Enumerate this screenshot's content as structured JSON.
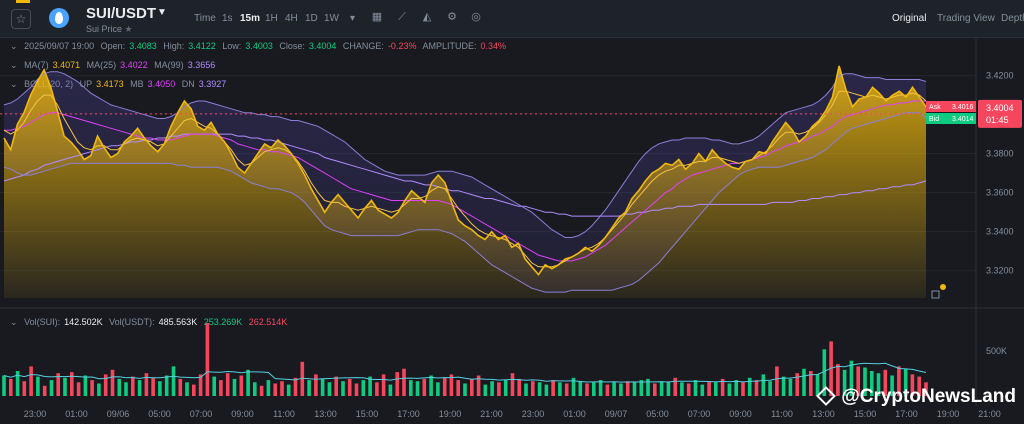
{
  "header": {
    "pair": "SUI/USDT",
    "subtitle": "Sui Price",
    "timeframes": [
      "Time",
      "1s",
      "15m",
      "1H",
      "4H",
      "1D",
      "1W"
    ],
    "active_timeframe": "15m",
    "views": [
      "Original",
      "Trading View",
      "Depth"
    ],
    "active_view": "Original",
    "icons": [
      "star-icon",
      "coin-icon",
      "chevron-down-icon",
      "calendar-icon",
      "line-chart-icon",
      "area-chart-icon",
      "settings-icon",
      "indicator-icon"
    ]
  },
  "ohlc": {
    "date": "2025/09/07 19:00",
    "open_label": "Open:",
    "open": "3.4083",
    "high_label": "High:",
    "high": "3.4122",
    "low_label": "Low:",
    "low": "3.4003",
    "close_label": "Close:",
    "close": "3.4004",
    "change_label": "CHANGE:",
    "change": "-0.23%",
    "amp_label": "AMPLITUDE:",
    "amp": "0.34%"
  },
  "ma": {
    "ma7_label": "MA(7)",
    "ma7": "3.4071",
    "ma25_label": "MA(25)",
    "ma25": "3.4022",
    "ma99_label": "MA(99)",
    "ma99": "3.3656"
  },
  "boll": {
    "label": "BOLL(20, 2)",
    "up_label": "UP",
    "up": "3.4173",
    "mb_label": "MB",
    "mb": "3.4050",
    "dn_label": "DN",
    "dn": "3.3927"
  },
  "orderbook": {
    "ask_label": "Ask",
    "ask": "3.4016",
    "bid_label": "Bid",
    "bid": "3.4014",
    "last": "3.4004",
    "countdown": "01:45"
  },
  "volume": {
    "sui_label": "Vol(SUI):",
    "sui": "142.502K",
    "usdt_label": "Vol(USDT):",
    "usdt": "485.563K",
    "buy": "253.269K",
    "sell": "262.514K"
  },
  "watermark": "@CryptoNewsLand",
  "colors": {
    "up": "#0ecb81",
    "down": "#f6465d",
    "price_line": "#f0b90b",
    "ma7": "#f0b90b",
    "ma25": "#e040fb",
    "ma99": "#b18cff",
    "boll": "#8b7fd6"
  },
  "chart_data": {
    "type": "area",
    "y_ticks": [
      "3.4200",
      "3.4004",
      "3.3800",
      "3.3600",
      "3.3400",
      "3.3200"
    ],
    "y_range": [
      3.306,
      3.428
    ],
    "x_ticks": [
      "23:00",
      "01:00",
      "09/06",
      "05:00",
      "07:00",
      "09:00",
      "11:00",
      "13:00",
      "15:00",
      "17:00",
      "19:00",
      "21:00",
      "23:00",
      "01:00",
      "09/07",
      "05:00",
      "07:00",
      "09:00",
      "11:00",
      "13:00",
      "15:00",
      "17:00",
      "19:00",
      "21:00"
    ],
    "vol_tick": "500K",
    "vol_max": 650,
    "price": [
      3.388,
      3.382,
      3.395,
      3.401,
      3.41,
      3.417,
      3.423,
      3.414,
      3.402,
      3.389,
      3.386,
      3.382,
      3.377,
      3.379,
      3.389,
      3.383,
      3.378,
      3.38,
      3.386,
      3.389,
      3.393,
      3.388,
      3.384,
      3.381,
      3.385,
      3.394,
      3.401,
      3.407,
      3.403,
      3.394,
      3.392,
      3.396,
      3.39,
      3.386,
      3.38,
      3.373,
      3.37,
      3.375,
      3.38,
      3.385,
      3.383,
      3.387,
      3.384,
      3.38,
      3.375,
      3.369,
      3.362,
      3.356,
      3.35,
      3.355,
      3.359,
      3.355,
      3.351,
      3.347,
      3.352,
      3.356,
      3.351,
      3.349,
      3.347,
      3.35,
      3.356,
      3.361,
      3.358,
      3.355,
      3.365,
      3.369,
      3.365,
      3.355,
      3.346,
      3.343,
      3.341,
      3.338,
      3.336,
      3.34,
      3.336,
      3.338,
      3.332,
      3.334,
      3.326,
      3.322,
      3.318,
      3.323,
      3.321,
      3.323,
      3.326,
      3.327,
      3.329,
      3.332,
      3.33,
      3.333,
      3.337,
      3.342,
      3.347,
      3.35,
      3.357,
      3.361,
      3.366,
      3.37,
      3.372,
      3.375,
      3.374,
      3.377,
      3.372,
      3.375,
      3.38,
      3.376,
      3.382,
      3.378,
      3.375,
      3.373,
      3.372,
      3.376,
      3.377,
      3.381,
      3.38,
      3.386,
      3.391,
      3.396,
      3.392,
      3.386,
      3.389,
      3.394,
      3.397,
      3.402,
      3.409,
      3.425,
      3.413,
      3.404,
      3.408,
      3.409,
      3.414,
      3.411,
      3.407,
      3.41,
      3.412,
      3.409,
      3.414,
      3.409,
      3.404
    ],
    "ma7": [
      3.392,
      3.39,
      3.392,
      3.396,
      3.402,
      3.407,
      3.41,
      3.41,
      3.405,
      3.398,
      3.392,
      3.386,
      3.383,
      3.382,
      3.384,
      3.384,
      3.382,
      3.382,
      3.385,
      3.387,
      3.388,
      3.387,
      3.386,
      3.384,
      3.385,
      3.389,
      3.393,
      3.397,
      3.398,
      3.396,
      3.394,
      3.393,
      3.39,
      3.386,
      3.382,
      3.377,
      3.374,
      3.375,
      3.378,
      3.381,
      3.382,
      3.383,
      3.382,
      3.38,
      3.376,
      3.371,
      3.365,
      3.36,
      3.356,
      3.355,
      3.355,
      3.353,
      3.352,
      3.351,
      3.352,
      3.353,
      3.352,
      3.351,
      3.35,
      3.351,
      3.354,
      3.357,
      3.357,
      3.358,
      3.361,
      3.363,
      3.362,
      3.357,
      3.352,
      3.348,
      3.344,
      3.341,
      3.339,
      3.338,
      3.337,
      3.336,
      3.334,
      3.332,
      3.328,
      3.324,
      3.322,
      3.322,
      3.322,
      3.323,
      3.325,
      3.327,
      3.329,
      3.331,
      3.332,
      3.334,
      3.337,
      3.341,
      3.345,
      3.349,
      3.354,
      3.358,
      3.362,
      3.366,
      3.369,
      3.371,
      3.372,
      3.374,
      3.374,
      3.375,
      3.376,
      3.376,
      3.378,
      3.378,
      3.377,
      3.376,
      3.375,
      3.376,
      3.377,
      3.379,
      3.381,
      3.384,
      3.388,
      3.391,
      3.391,
      3.39,
      3.391,
      3.393,
      3.396,
      3.4,
      3.405,
      3.412,
      3.412,
      3.411,
      3.41,
      3.409,
      3.41,
      3.409,
      3.408,
      3.409,
      3.41,
      3.41,
      3.411,
      3.41,
      3.407
    ],
    "ma25": [
      3.392,
      3.392,
      3.393,
      3.394,
      3.396,
      3.398,
      3.4,
      3.401,
      3.401,
      3.4,
      3.399,
      3.398,
      3.397,
      3.396,
      3.395,
      3.394,
      3.393,
      3.392,
      3.391,
      3.39,
      3.389,
      3.388,
      3.388,
      3.387,
      3.387,
      3.387,
      3.388,
      3.389,
      3.39,
      3.39,
      3.39,
      3.39,
      3.389,
      3.388,
      3.387,
      3.385,
      3.384,
      3.383,
      3.382,
      3.382,
      3.381,
      3.381,
      3.38,
      3.379,
      3.378,
      3.376,
      3.374,
      3.372,
      3.37,
      3.368,
      3.366,
      3.364,
      3.362,
      3.361,
      3.36,
      3.359,
      3.358,
      3.357,
      3.356,
      3.356,
      3.356,
      3.356,
      3.356,
      3.356,
      3.356,
      3.356,
      3.355,
      3.354,
      3.352,
      3.35,
      3.348,
      3.346,
      3.344,
      3.342,
      3.34,
      3.338,
      3.336,
      3.334,
      3.332,
      3.33,
      3.328,
      3.327,
      3.326,
      3.325,
      3.325,
      3.325,
      3.326,
      3.327,
      3.329,
      3.331,
      3.333,
      3.336,
      3.339,
      3.342,
      3.345,
      3.348,
      3.351,
      3.354,
      3.357,
      3.36,
      3.362,
      3.365,
      3.367,
      3.369,
      3.37,
      3.371,
      3.372,
      3.373,
      3.374,
      3.375,
      3.375,
      3.376,
      3.377,
      3.378,
      3.379,
      3.381,
      3.382,
      3.384,
      3.385,
      3.386,
      3.387,
      3.389,
      3.39,
      3.392,
      3.394,
      3.397,
      3.399,
      3.4,
      3.401,
      3.402,
      3.403,
      3.404,
      3.405,
      3.405,
      3.406,
      3.406,
      3.407,
      3.407,
      3.407
    ],
    "ma99": [
      3.366,
      3.367,
      3.368,
      3.369,
      3.371,
      3.372,
      3.374,
      3.375,
      3.376,
      3.377,
      3.378,
      3.379,
      3.38,
      3.381,
      3.382,
      3.383,
      3.384,
      3.384,
      3.385,
      3.386,
      3.386,
      3.387,
      3.387,
      3.388,
      3.388,
      3.389,
      3.389,
      3.39,
      3.39,
      3.39,
      3.39,
      3.39,
      3.39,
      3.39,
      3.39,
      3.389,
      3.389,
      3.388,
      3.388,
      3.387,
      3.387,
      3.386,
      3.385,
      3.384,
      3.383,
      3.382,
      3.381,
      3.38,
      3.378,
      3.377,
      3.376,
      3.375,
      3.374,
      3.373,
      3.372,
      3.371,
      3.37,
      3.369,
      3.368,
      3.367,
      3.366,
      3.366,
      3.365,
      3.364,
      3.364,
      3.363,
      3.362,
      3.361,
      3.361,
      3.36,
      3.359,
      3.358,
      3.357,
      3.357,
      3.356,
      3.355,
      3.354,
      3.353,
      3.353,
      3.352,
      3.351,
      3.35,
      3.35,
      3.349,
      3.349,
      3.348,
      3.348,
      3.348,
      3.348,
      3.348,
      3.348,
      3.348,
      3.348,
      3.349,
      3.349,
      3.35,
      3.35,
      3.351,
      3.351,
      3.352,
      3.352,
      3.353,
      3.353,
      3.353,
      3.354,
      3.354,
      3.354,
      3.354,
      3.354,
      3.354,
      3.354,
      3.354,
      3.354,
      3.354,
      3.354,
      3.355,
      3.355,
      3.355,
      3.355,
      3.356,
      3.356,
      3.357,
      3.357,
      3.358,
      3.358,
      3.359,
      3.359,
      3.36,
      3.36,
      3.361,
      3.361,
      3.362,
      3.362,
      3.363,
      3.363,
      3.364,
      3.364,
      3.365,
      3.366
    ],
    "boll_up": [
      3.405,
      3.406,
      3.408,
      3.411,
      3.414,
      3.418,
      3.421,
      3.422,
      3.422,
      3.421,
      3.419,
      3.417,
      3.414,
      3.411,
      3.409,
      3.407,
      3.405,
      3.404,
      3.403,
      3.402,
      3.401,
      3.4,
      3.399,
      3.398,
      3.398,
      3.399,
      3.401,
      3.404,
      3.406,
      3.407,
      3.407,
      3.406,
      3.405,
      3.404,
      3.403,
      3.402,
      3.401,
      3.401,
      3.4,
      3.4,
      3.399,
      3.399,
      3.398,
      3.397,
      3.397,
      3.396,
      3.395,
      3.394,
      3.392,
      3.39,
      3.388,
      3.386,
      3.383,
      3.38,
      3.377,
      3.375,
      3.373,
      3.371,
      3.37,
      3.369,
      3.369,
      3.369,
      3.369,
      3.369,
      3.37,
      3.371,
      3.371,
      3.371,
      3.37,
      3.369,
      3.368,
      3.366,
      3.364,
      3.362,
      3.36,
      3.358,
      3.356,
      3.354,
      3.352,
      3.35,
      3.347,
      3.344,
      3.341,
      3.339,
      3.337,
      3.337,
      3.338,
      3.34,
      3.343,
      3.347,
      3.351,
      3.356,
      3.361,
      3.366,
      3.371,
      3.376,
      3.38,
      3.383,
      3.385,
      3.386,
      3.387,
      3.387,
      3.388,
      3.388,
      3.388,
      3.388,
      3.387,
      3.387,
      3.386,
      3.385,
      3.385,
      3.386,
      3.387,
      3.389,
      3.392,
      3.395,
      3.398,
      3.401,
      3.402,
      3.403,
      3.404,
      3.405,
      3.407,
      3.41,
      3.414,
      3.42,
      3.421,
      3.421,
      3.42,
      3.419,
      3.419,
      3.419,
      3.418,
      3.418,
      3.418,
      3.418,
      3.418,
      3.418,
      3.417
    ],
    "boll_dn": [
      3.373,
      3.372,
      3.37,
      3.369,
      3.369,
      3.37,
      3.371,
      3.372,
      3.373,
      3.374,
      3.375,
      3.375,
      3.375,
      3.375,
      3.375,
      3.375,
      3.375,
      3.375,
      3.375,
      3.375,
      3.375,
      3.375,
      3.375,
      3.375,
      3.375,
      3.375,
      3.374,
      3.374,
      3.373,
      3.373,
      3.373,
      3.373,
      3.373,
      3.372,
      3.371,
      3.369,
      3.367,
      3.365,
      3.364,
      3.363,
      3.362,
      3.362,
      3.361,
      3.36,
      3.358,
      3.355,
      3.351,
      3.347,
      3.343,
      3.341,
      3.34,
      3.339,
      3.338,
      3.338,
      3.338,
      3.338,
      3.338,
      3.338,
      3.338,
      3.338,
      3.339,
      3.34,
      3.341,
      3.341,
      3.341,
      3.341,
      3.34,
      3.339,
      3.337,
      3.335,
      3.332,
      3.329,
      3.326,
      3.323,
      3.321,
      3.319,
      3.317,
      3.315,
      3.313,
      3.311,
      3.31,
      3.309,
      3.309,
      3.309,
      3.309,
      3.31,
      3.31,
      3.31,
      3.31,
      3.31,
      3.31,
      3.31,
      3.311,
      3.312,
      3.313,
      3.315,
      3.318,
      3.321,
      3.324,
      3.328,
      3.332,
      3.336,
      3.34,
      3.344,
      3.348,
      3.352,
      3.356,
      3.36,
      3.363,
      3.366,
      3.369,
      3.371,
      3.372,
      3.373,
      3.373,
      3.373,
      3.373,
      3.374,
      3.375,
      3.376,
      3.377,
      3.378,
      3.38,
      3.382,
      3.385,
      3.388,
      3.391,
      3.393,
      3.394,
      3.395,
      3.396,
      3.397,
      3.398,
      3.399,
      3.4,
      3.401,
      3.401,
      3.401,
      3.398
    ],
    "volume": [
      180,
      150,
      220,
      130,
      260,
      170,
      90,
      140,
      200,
      160,
      210,
      120,
      180,
      140,
      110,
      190,
      230,
      150,
      120,
      170,
      140,
      200,
      160,
      130,
      180,
      260,
      150,
      120,
      100,
      190,
      640,
      170,
      140,
      200,
      150,
      180,
      230,
      120,
      90,
      140,
      110,
      130,
      100,
      160,
      300,
      140,
      190,
      150,
      120,
      170,
      130,
      150,
      110,
      140,
      170,
      120,
      190,
      100,
      210,
      240,
      140,
      130,
      150,
      180,
      120,
      160,
      190,
      140,
      110,
      150,
      180,
      100,
      130,
      120,
      140,
      200,
      150,
      110,
      130,
      120,
      100,
      140,
      120,
      110,
      160,
      130,
      110,
      120,
      140,
      100,
      120,
      110,
      130,
      120,
      140,
      150,
      110,
      130,
      120,
      160,
      120,
      110,
      140,
      100,
      130,
      120,
      150,
      110,
      140,
      120,
      160,
      140,
      190,
      130,
      260,
      170,
      150,
      200,
      240,
      220,
      190,
      410,
      480,
      280,
      230,
      310,
      260,
      250,
      220,
      200,
      230,
      180,
      260,
      240,
      190,
      170,
      120
    ],
    "volume_up": [
      1,
      0,
      1,
      0,
      0,
      1,
      0,
      1,
      0,
      1,
      0,
      0,
      1,
      0,
      1,
      0,
      0,
      1,
      1,
      0,
      1,
      0,
      0,
      1,
      1,
      1,
      0,
      1,
      0,
      0,
      0,
      1,
      0,
      0,
      1,
      0,
      1,
      1,
      0,
      1,
      0,
      0,
      1,
      0,
      0,
      1,
      0,
      1,
      1,
      0,
      1,
      0,
      0,
      1,
      1,
      0,
      0,
      1,
      0,
      0,
      1,
      1,
      0,
      1,
      1,
      0,
      0,
      0,
      1,
      0,
      0,
      1,
      1,
      0,
      1,
      0,
      0,
      1,
      0,
      1,
      1,
      0,
      1,
      0,
      1,
      1,
      0,
      1,
      1,
      0,
      1,
      1,
      0,
      1,
      1,
      1,
      0,
      1,
      1,
      0,
      1,
      0,
      1,
      1,
      0,
      1,
      0,
      1,
      1,
      0,
      1,
      0,
      1,
      1,
      0,
      1,
      1,
      0,
      1,
      0,
      1,
      1,
      0,
      0,
      1,
      1,
      0,
      1,
      1,
      1,
      0,
      1,
      0,
      1,
      0,
      0,
      0
    ]
  }
}
